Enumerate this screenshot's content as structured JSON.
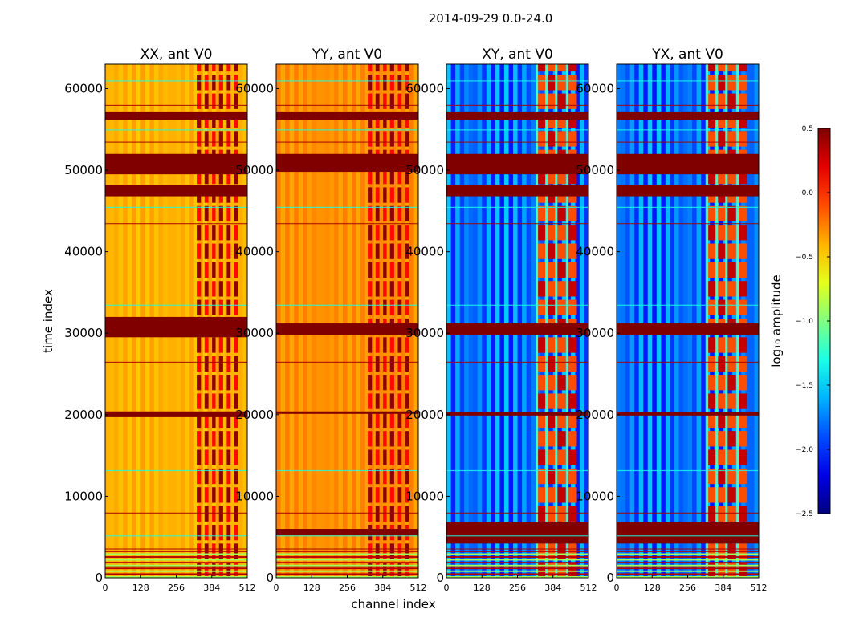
{
  "chart_data": {
    "type": "heatmap",
    "suptitle": "2014-09-29 0.0-24.0",
    "xlabel": "channel index",
    "ylabel": "time index",
    "xlim": [
      0,
      512
    ],
    "ylim": [
      0,
      63000
    ],
    "x_ticks": [
      0,
      128,
      256,
      384,
      512
    ],
    "y_ticks": [
      0,
      10000,
      20000,
      30000,
      40000,
      50000,
      60000
    ],
    "x_tick_labels": [
      "0",
      "128",
      "256",
      "384",
      "512"
    ],
    "y_tick_labels": [
      "0",
      "10000",
      "20000",
      "30000",
      "40000",
      "50000",
      "60000"
    ],
    "panels": [
      {
        "title": "XX, ant V0",
        "baseline_log10_amp": -0.4,
        "strong_bands_time": [
          [
            29500,
            32000
          ],
          [
            19700,
            20400
          ],
          [
            46800,
            48200
          ],
          [
            49500,
            52000
          ],
          [
            56200,
            57200
          ]
        ],
        "strong_columns_channel": [
          [
            330,
            345
          ],
          [
            358,
            372
          ],
          [
            385,
            398
          ],
          [
            410,
            425
          ],
          [
            438,
            452
          ],
          [
            465,
            478
          ]
        ]
      },
      {
        "title": "YY, ant V0",
        "baseline_log10_amp": -0.3,
        "strong_bands_time": [
          [
            29800,
            31200
          ],
          [
            20100,
            20400
          ],
          [
            5200,
            6000
          ],
          [
            49800,
            52000
          ],
          [
            56200,
            57200
          ]
        ],
        "strong_columns_channel": [
          [
            330,
            345
          ],
          [
            358,
            372
          ],
          [
            385,
            398
          ],
          [
            410,
            425
          ],
          [
            438,
            452
          ],
          [
            465,
            478
          ]
        ]
      },
      {
        "title": "XY, ant V0",
        "baseline_log10_amp": -1.8,
        "strong_bands_time": [
          [
            29800,
            31200
          ],
          [
            19900,
            20300
          ],
          [
            4200,
            6800
          ],
          [
            46800,
            48200
          ],
          [
            49500,
            52000
          ],
          [
            56200,
            57200
          ]
        ],
        "strong_columns_channel": [
          [
            330,
            360
          ],
          [
            365,
            395
          ],
          [
            400,
            430
          ],
          [
            440,
            470
          ]
        ]
      },
      {
        "title": "YX, ant V0",
        "baseline_log10_amp": -1.8,
        "strong_bands_time": [
          [
            29800,
            31200
          ],
          [
            19900,
            20300
          ],
          [
            4200,
            6800
          ],
          [
            46800,
            48200
          ],
          [
            49500,
            52000
          ],
          [
            56200,
            57200
          ]
        ],
        "strong_columns_channel": [
          [
            330,
            360
          ],
          [
            365,
            395
          ],
          [
            400,
            430
          ],
          [
            440,
            470
          ]
        ]
      }
    ],
    "colorbar": {
      "label": "log₁₀ amplitude",
      "range": [
        -2.5,
        0.5
      ],
      "ticks": [
        0.5,
        0.0,
        -0.5,
        -1.0,
        -1.5,
        -2.0,
        -2.5
      ],
      "tick_labels": [
        "0.5",
        "0.0",
        "−0.5",
        "−1.0",
        "−1.5",
        "−2.0",
        "−2.5"
      ],
      "colormap": "jet"
    }
  }
}
